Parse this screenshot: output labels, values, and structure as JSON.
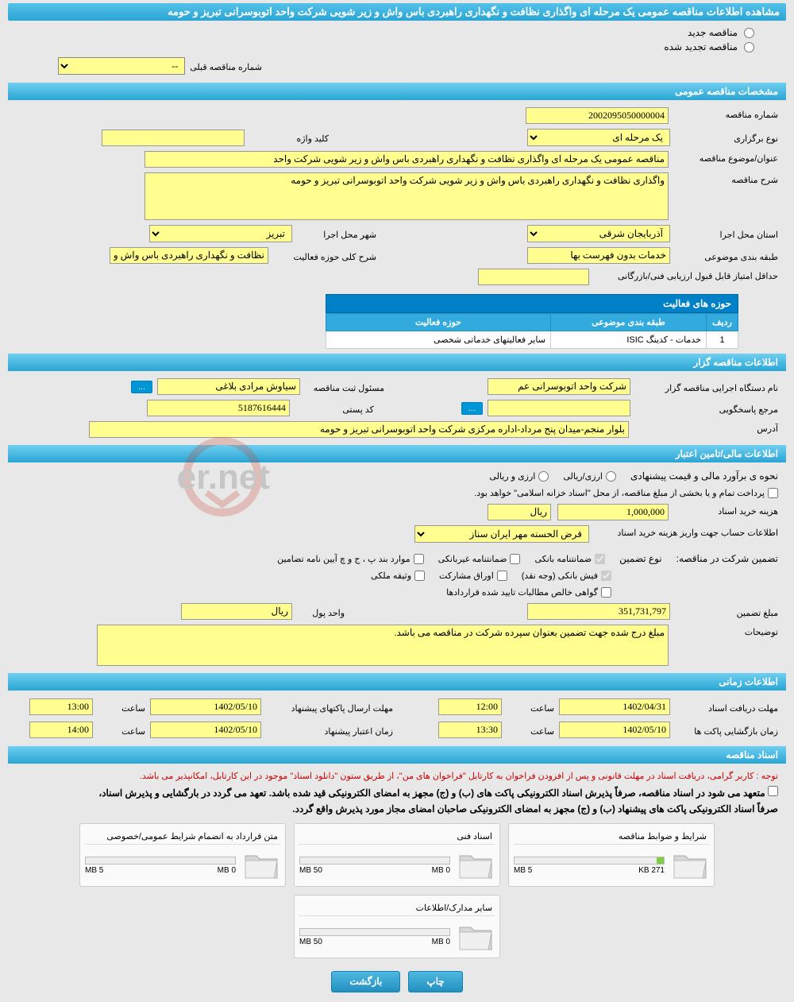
{
  "header": {
    "title": "مشاهده اطلاعات مناقصه عمومی یک مرحله ای واگذاری نظافت و نگهداری راهبردی باس واش و زیر شویی شرکت واحد اتوبوسرانی تبریز و حومه"
  },
  "radios": {
    "new_tender": "مناقصه جدید",
    "renewed_tender": "مناقصه تجدید شده"
  },
  "prev_select": {
    "label": "شماره مناقصه قبلی",
    "value": "--"
  },
  "sections": {
    "general": "مشخصات مناقصه عمومی",
    "organizer": "اطلاعات مناقصه گزار",
    "financial": "اطلاعات مالی/تامین اعتبار",
    "timing": "اطلاعات زمانی",
    "docs": "اسناد مناقصه"
  },
  "general": {
    "number_lbl": "شماره مناقصه",
    "number": "2002095050000004",
    "type_lbl": "نوع برگزاری",
    "type": "یک مرحله ای",
    "keyword_lbl": "کلید واژه",
    "keyword": "",
    "subject_lbl": "عنوان/موضوع مناقصه",
    "subject": "مناقصه عمومی یک مرحله ای واگذاری نظافت و نگهداری راهبردی باس واش و زیر شویی شرکت واحد",
    "desc_lbl": "شرح مناقصه",
    "desc": "واگذاری نظافت و نگهداری راهبردی باس واش و زیر شویی شرکت واحد اتوبوسرانی تبریز و حومه",
    "province_lbl": "استان محل اجرا",
    "province": "آذربایجان شرقی",
    "city_lbl": "شهر محل اجرا",
    "city": "تبریز",
    "category_lbl": "طبقه بندی موضوعی",
    "category": "خدمات بدون فهرست بها",
    "scope_lbl": "شرح کلی حوزه فعالیت",
    "scope": "نظافت و نگهداری راهبردی باس واش و زیر شویی",
    "min_score_lbl": "حداقل امتیاز قابل قبول ارزیابی فنی/بازرگانی",
    "min_score": ""
  },
  "activity_table": {
    "title": "حوزه های فعالیت",
    "cols": [
      "ردیف",
      "طبقه بندی موضوعی",
      "حوزه فعالیت"
    ],
    "row": [
      "1",
      "خدمات - کدینگ ISIC",
      "سایر فعالیتهای خدماتی شخصی"
    ]
  },
  "organizer": {
    "exec_lbl": "نام دستگاه اجرایی مناقصه گزار",
    "exec": "شرکت واحد اتوبوسرانی عم",
    "reg_lbl": "مسئول ثبت مناقصه",
    "reg": "سیاوش مرادی بلاغی",
    "resp_lbl": "مرجع پاسخگویی",
    "resp": "",
    "post_lbl": "کد پستی",
    "post": "5187616444",
    "addr_lbl": "آدرس",
    "addr": "بلوار منجم-میدان پنج مرداد-اداره مرکزی شرکت واحد اتوبوسرانی تبریز و حومه",
    "ellipsis": "..."
  },
  "financial": {
    "method_lbl": "نحوه ی برآورد مالی و قیمت پیشنهادی",
    "opt1": "ارزی/ریالی",
    "opt2": "ارزی و ریالی",
    "treasury_note": "پرداخت تمام و یا بخشی از مبلغ مناقصه، از محل \"اسناد خزانه اسلامی\" خواهد بود.",
    "doc_cost_lbl": "هزینه خرید اسناد",
    "doc_cost": "1,000,000",
    "unit_rial": "ریال",
    "acct_lbl": "اطلاعات حساب جهت واریز هزینه خرید اسناد",
    "acct": "قرض الحسنه مهر ایران سناز",
    "guarantee_lbl": "تضمین شرکت در مناقصه:",
    "gtype_lbl": "نوع تضمین",
    "g1": "ضمانتنامه بانکی",
    "g2": "ضمانتنامه غیربانکی",
    "g3": "موارد بند پ ، ج و چ آیین نامه تضامین",
    "g4": "فیش بانکی (وجه نقد)",
    "g5": "اوراق مشارکت",
    "g6": "وثیقه ملکی",
    "g7": "گواهی خالص مطالبات تایید شده قراردادها",
    "gamount_lbl": "مبلغ تضمین",
    "gamount": "351,731,797",
    "gunit_lbl": "واحد پول",
    "gunit": "ریال",
    "gdesc_lbl": "توضیحات",
    "gdesc": "مبلغ درج شده جهت تضمین بعنوان سپرده شرکت در مناقصه می باشد."
  },
  "timing": {
    "receive_lbl": "مهلت دریافت اسناد",
    "receive_date": "1402/04/31",
    "receive_time_lbl": "ساعت",
    "receive_time": "12:00",
    "send_lbl": "مهلت ارسال پاکتهای پیشنهاد",
    "send_date": "1402/05/10",
    "send_time": "13:00",
    "open_lbl": "زمان بازگشایی پاکت ها",
    "open_date": "1402/05/10",
    "open_time": "13:30",
    "valid_lbl": "زمان اعتبار پیشنهاد",
    "valid_date": "1402/05/10",
    "valid_time": "14:00"
  },
  "docs": {
    "red_note": "توجه : کاربر گرامی، دریافت اسناد در مهلت قانونی و پس از افزودن فراخوان به کارتابل \"فراخوان های من\"، از طریق ستون \"دانلود اسناد\" موجود در این کارتابل، امکانپذیر می باشد.",
    "bold1": "متعهد می شود در اسناد مناقصه، صرفاً پذیرش اسناد الکترونیکی پاکت های (ب) و (ج) مجهز به امضای الکترونیکی قید شده باشد. تعهد می گردد در بارگشایی و پذیرش اسناد،",
    "bold2": "صرفاً اسناد الکترونیکی پاکت های پیشنهاد (ب) و (ج) مجهز به امضای الکترونیکی صاحبان امضای مجاز مورد پذیرش واقع گردد.",
    "cards": [
      {
        "title": "شرایط و ضوابط مناقصه",
        "used": "271 KB",
        "max": "5 MB",
        "fill": 5
      },
      {
        "title": "اسناد فنی",
        "used": "0 MB",
        "max": "50 MB",
        "fill": 0
      },
      {
        "title": "متن قرارداد به انضمام شرایط عمومی/خصوصی",
        "used": "0 MB",
        "max": "5 MB",
        "fill": 0
      },
      {
        "title": "سایر مدارک/اطلاعات",
        "used": "0 MB",
        "max": "50 MB",
        "fill": 0
      }
    ]
  },
  "buttons": {
    "print": "چاپ",
    "back": "بازگشت"
  },
  "colors": {
    "yellow": "#fffe8f",
    "blue": "#2aa5d4",
    "bg": "#e8e8e8"
  }
}
